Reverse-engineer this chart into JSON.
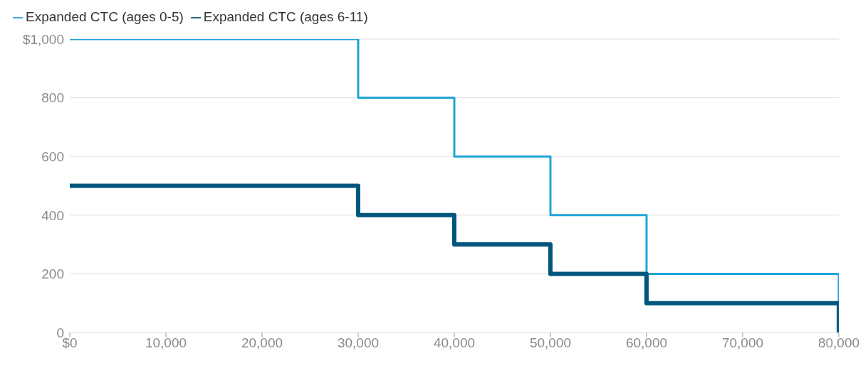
{
  "chart_data": {
    "type": "step",
    "x": [
      0,
      30000,
      40000,
      50000,
      60000,
      80000
    ],
    "series": [
      {
        "name": "Expanded CTC (ages 0-5)",
        "color": "#20a4d8",
        "values": [
          1000,
          800,
          600,
          400,
          200,
          0
        ]
      },
      {
        "name": "Expanded CTC (ages 6-11)",
        "color": "#00567d",
        "values": [
          500,
          400,
          300,
          200,
          100,
          0
        ]
      }
    ],
    "xlim": [
      0,
      80000
    ],
    "xticks": [
      {
        "value": 0,
        "label": "$0"
      },
      {
        "value": 10000,
        "label": "10,000"
      },
      {
        "value": 20000,
        "label": "20,000"
      },
      {
        "value": 30000,
        "label": "30,000"
      },
      {
        "value": 40000,
        "label": "40,000"
      },
      {
        "value": 50000,
        "label": "50,000"
      },
      {
        "value": 60000,
        "label": "60,000"
      },
      {
        "value": 70000,
        "label": "70,000"
      },
      {
        "value": 80000,
        "label": "80,000"
      }
    ],
    "ylim": [
      0,
      1000
    ],
    "yticks": [
      0,
      200,
      400,
      600,
      800,
      {
        "value": 1000,
        "label": "$1,000"
      }
    ],
    "grid": "y",
    "legend": "top left"
  }
}
